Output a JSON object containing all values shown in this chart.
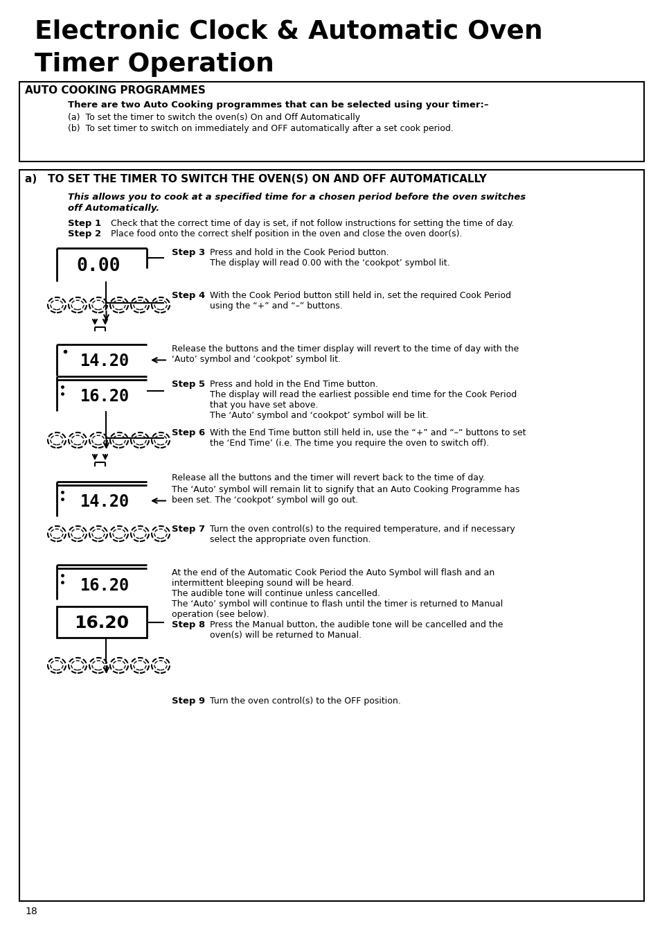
{
  "bg_color": "#ffffff",
  "text_color": "#000000",
  "title_line1": "Electronic Clock & Automatic Oven",
  "title_line2": "Timer Operation",
  "page_number": "18",
  "section_header": "AUTO COOKING PROGRAMMES",
  "intro_bold": "There are two Auto Cooking programmes that can be selected using your timer:–",
  "intro_a": "(a)  To set the timer to switch the oven(s) On and Off Automatically",
  "intro_b": "(b)  To set timer to switch on immediately and OFF automatically after a set cook period.",
  "subsection_a_header": "a)   TO SET THE TIMER TO SWITCH THE OVEN(S) ON AND OFF AUTOMATICALLY",
  "italic_text_1": "This allows you to cook at a specified time for a chosen period before the oven switches",
  "italic_text_2": "off Automatically.",
  "display_0_00": "0.00",
  "display_14_20": "14.20",
  "display_16_20_lcd": "16.20",
  "display_16_20_plain": "16.20"
}
